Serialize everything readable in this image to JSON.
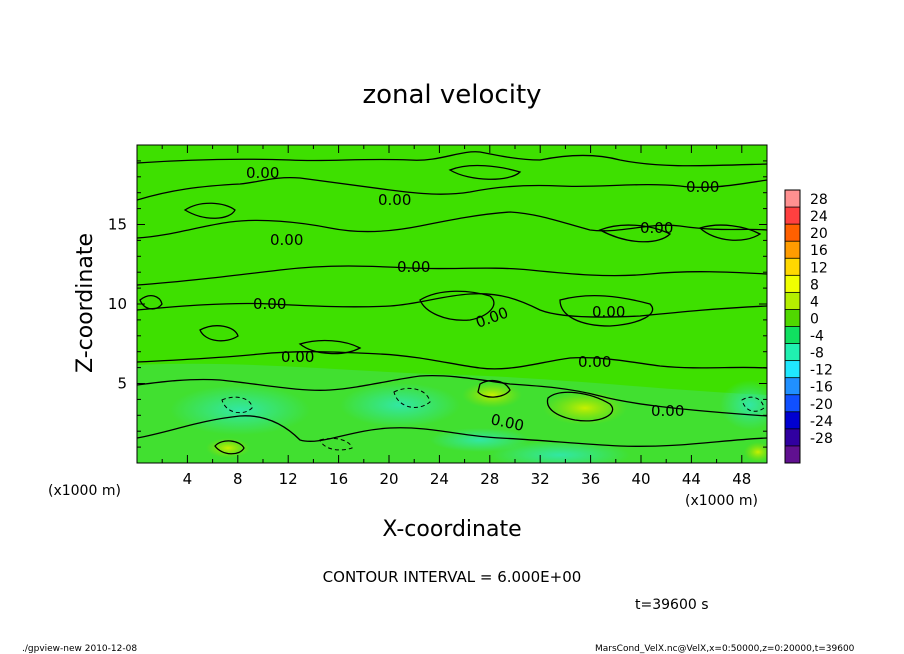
{
  "chart_data": {
    "type": "heatmap",
    "title": "zonal velocity",
    "xlabel": "X-coordinate",
    "ylabel": "Z-coordinate",
    "x_unit": "(x1000 m)",
    "x_unit_right": "(x1000 m)",
    "y_unit": "(x1000 m)",
    "xlim": [
      0,
      50
    ],
    "ylim": [
      0,
      20
    ],
    "x_ticks": [
      "4",
      "8",
      "12",
      "16",
      "20",
      "24",
      "28",
      "32",
      "36",
      "40",
      "44",
      "48"
    ],
    "y_ticks": [
      "5",
      "10",
      "15"
    ],
    "colorbar": {
      "levels": [
        "28",
        "24",
        "20",
        "16",
        "12",
        "8",
        "4",
        "0",
        "-4",
        "-8",
        "-12",
        "-16",
        "-20",
        "-24",
        "-28"
      ],
      "colors": [
        "#ff9090",
        "#ff4040",
        "#ff6000",
        "#ff9c00",
        "#ffd800",
        "#f0ff00",
        "#b4ef00",
        "#50d800",
        "#10e060",
        "#20f0b0",
        "#20e8ff",
        "#2090ff",
        "#1050ff",
        "#0000d0",
        "#3000a0",
        "#601090"
      ]
    },
    "contour_labels": [
      "0.00",
      "0.00",
      "0.00",
      "0.00",
      "0.00",
      "0.00",
      "0.00",
      "0.00",
      "0.00",
      "0.00",
      "0.00",
      "0.00",
      "0.00"
    ],
    "contour_interval": "CONTOUR INTERVAL = 6.000E+00",
    "time_label": "t=39600 s",
    "footer_left": "./gpview-new  2010-12-08",
    "footer_right": "MarsCond_VelX.nc@VelX,x=0:50000,z=0:20000,t=39600"
  }
}
